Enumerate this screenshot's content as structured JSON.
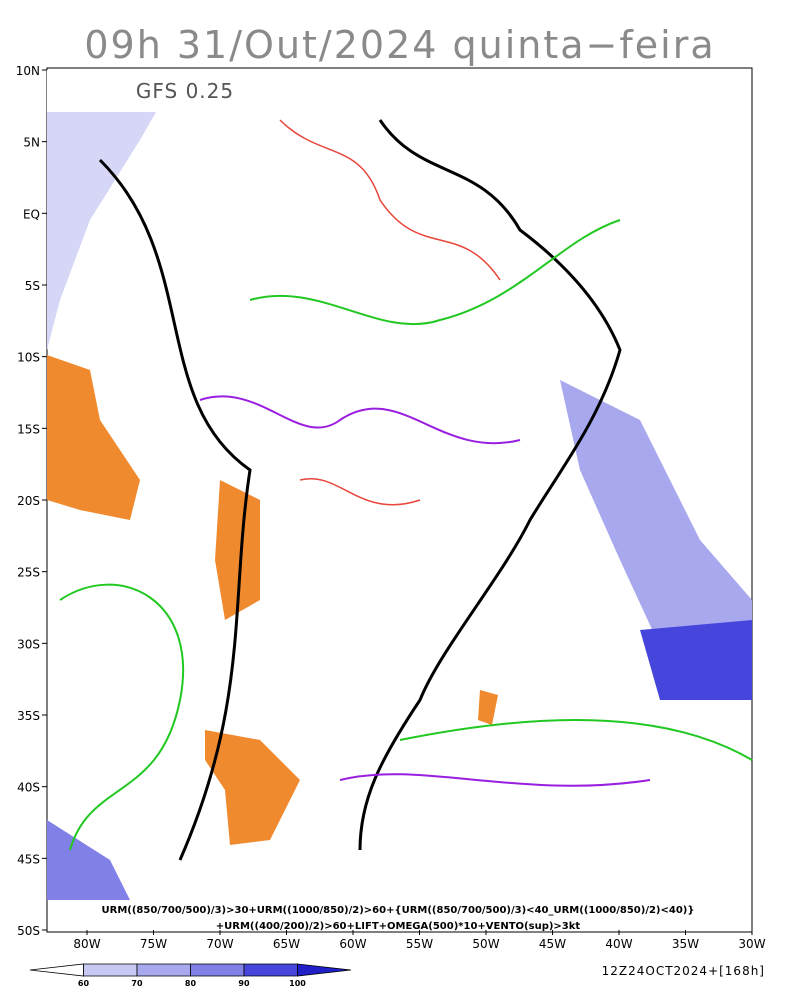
{
  "title": "09h 31/Out/2024 quinta−feira",
  "model": "GFS 0.25",
  "lat_labels": [
    "10N",
    "5N",
    "EQ",
    "5S",
    "10S",
    "15S",
    "20S",
    "25S",
    "30S",
    "35S",
    "40S",
    "45S",
    "50S"
  ],
  "lon_labels": [
    "80W",
    "75W",
    "70W",
    "65W",
    "60W",
    "55W",
    "50W",
    "45W",
    "40W",
    "35W",
    "30W"
  ],
  "formula": [
    "URM((850/700/500)/3)>30+URM((1000/850)/2)>60+{URM((850/700/500)/3)<40_URM((1000/850)/2)<40)}",
    "+URM((400/200)/2)>60+LIFT+OMEGA(500)*10+VENTO(sup)>3kt"
  ],
  "colorbar": {
    "labels": [
      "60",
      "70",
      "80",
      "90",
      "100"
    ],
    "colors": [
      "#ffffff",
      "#c8c8f5",
      "#a8a8ef",
      "#8080e6",
      "#4646dc",
      "#2020c8"
    ]
  },
  "run": "12Z24OCT2024+[168h]"
}
